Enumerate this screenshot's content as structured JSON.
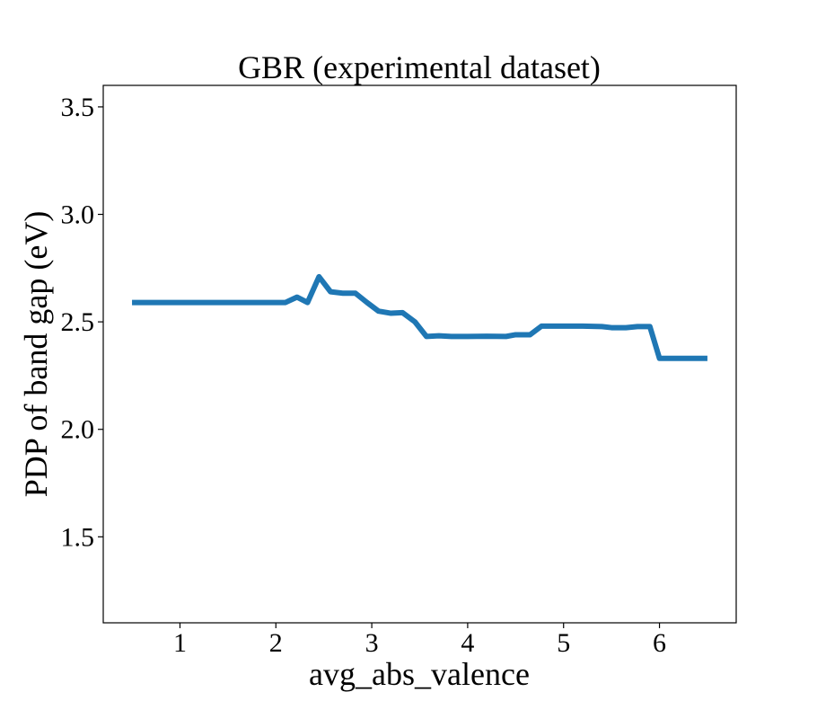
{
  "chart_data": {
    "type": "line",
    "title": "GBR (experimental dataset)",
    "xlabel": "avg_abs_valence",
    "ylabel": "PDP of band gap (eV)",
    "xlim": [
      0.2,
      6.8
    ],
    "ylim": [
      1.1,
      3.6
    ],
    "xticks": [
      1,
      2,
      3,
      4,
      5,
      6
    ],
    "yticks": [
      1.5,
      2.0,
      2.5,
      3.0,
      3.5
    ],
    "xtick_labels": [
      "1",
      "2",
      "3",
      "4",
      "5",
      "6"
    ],
    "ytick_labels": [
      "1.5",
      "2.0",
      "2.5",
      "3.0",
      "3.5"
    ],
    "grid": false,
    "series": [
      {
        "color": "#1f77b4",
        "x": [
          0.5,
          1.0,
          1.5,
          2.0,
          2.1,
          2.22,
          2.33,
          2.45,
          2.57,
          2.7,
          2.83,
          2.95,
          3.07,
          3.2,
          3.32,
          3.45,
          3.57,
          3.7,
          3.83,
          4.0,
          4.2,
          4.4,
          4.5,
          4.65,
          4.77,
          5.0,
          5.2,
          5.4,
          5.5,
          5.65,
          5.77,
          5.9,
          6.0,
          6.2,
          6.5
        ],
        "y": [
          2.59,
          2.59,
          2.59,
          2.59,
          2.59,
          2.615,
          2.59,
          2.71,
          2.64,
          2.633,
          2.633,
          2.59,
          2.55,
          2.54,
          2.543,
          2.5,
          2.432,
          2.435,
          2.432,
          2.432,
          2.433,
          2.432,
          2.44,
          2.44,
          2.48,
          2.48,
          2.48,
          2.478,
          2.473,
          2.473,
          2.478,
          2.478,
          2.33,
          2.33,
          2.33
        ]
      }
    ]
  }
}
